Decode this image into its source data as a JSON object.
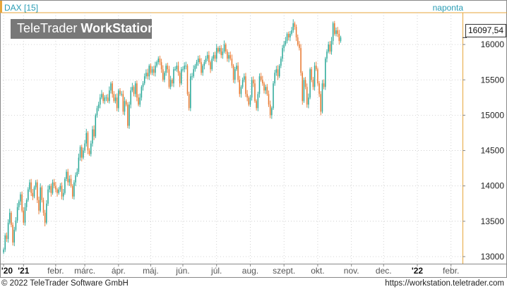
{
  "header": {
    "symbol": "DAX [15]",
    "period": "naponta",
    "logo_regular": "TeleTrader",
    "logo_bold": "WorkStation"
  },
  "last_value_label": "16097,54",
  "footer": {
    "copyright": "© 2022 TeleTrader Software GmbH",
    "url": "https://workstation.teletrader.com"
  },
  "colors": {
    "up": "#2aa898",
    "down": "#e8772e",
    "grid": "#c8c8c8",
    "axis_text": "#2a9db5"
  },
  "chart_data": {
    "type": "candlestick",
    "y_axis_side": "right",
    "ylim": [
      12900,
      16450
    ],
    "yticks": [
      13000,
      13500,
      14000,
      14500,
      15000,
      15500,
      16000
    ],
    "ytick_labels": [
      "13000",
      "13500",
      "14000",
      "14500",
      "15000",
      "15500",
      "16000"
    ],
    "x_tick_labels": [
      "'20",
      "'21",
      "febr.",
      "márc.",
      "ápr.",
      "máj.",
      "jún.",
      "júl.",
      "aug.",
      "szept.",
      "okt.",
      "nov.",
      "dec.",
      "'22",
      "febr."
    ],
    "x_tick_index": [
      0,
      13,
      34,
      53,
      75,
      96,
      117,
      139,
      161,
      183,
      205,
      227,
      248,
      270,
      292
    ],
    "n_slots": 300,
    "first_index": 0,
    "closes": [
      13100,
      13300,
      13250,
      13480,
      13620,
      13450,
      13200,
      13380,
      13510,
      13700,
      13780,
      13880,
      13650,
      13480,
      13700,
      13800,
      13950,
      14050,
      13900,
      13850,
      13980,
      14050,
      13800,
      13650,
      13980,
      13800,
      13620,
      13480,
      13750,
      13950,
      14000,
      13900,
      14050,
      14000,
      13950,
      13900,
      13950,
      14000,
      13850,
      13900,
      14100,
      14200,
      14050,
      14100,
      14000,
      13850,
      14050,
      14150,
      14200,
      14400,
      14550,
      14400,
      14500,
      14600,
      14750,
      14500,
      14450,
      14600,
      14800,
      14700,
      15000,
      15100,
      15150,
      15250,
      15300,
      15200,
      15250,
      15250,
      15200,
      15350,
      15450,
      15300,
      15200,
      15250,
      15100,
      15350,
      15300,
      15300,
      15050,
      15200,
      15150,
      14850,
      15150,
      15350,
      15400,
      15300,
      15450,
      15250,
      15150,
      15250,
      15400,
      15450,
      15550,
      15600,
      15550,
      15700,
      15600,
      15650,
      15600,
      15700,
      15750,
      15800,
      15750,
      15650,
      15500,
      15600,
      15700,
      15650,
      15400,
      15500,
      15450,
      15650,
      15650,
      15700,
      15600,
      15450,
      15650,
      15650,
      15700,
      15700,
      15300,
      15100,
      15550,
      15550,
      15650,
      15700,
      15750,
      15800,
      15750,
      15600,
      15700,
      15750,
      15800,
      15850,
      15750,
      15650,
      15800,
      15850,
      15800,
      15950,
      15900,
      15950,
      15850,
      15900,
      16000,
      15900,
      15800,
      15850,
      15800,
      15700,
      15500,
      15650,
      15700,
      15500,
      15300,
      15400,
      15500,
      15550,
      15300,
      15250,
      15150,
      15250,
      15500,
      15450,
      15200,
      15100,
      15300,
      15550,
      15500,
      15450,
      15350,
      15400,
      15300,
      15150,
      15000,
      15100,
      15450,
      15600,
      15650,
      15550,
      15700,
      15800,
      15950,
      16000,
      16050,
      16150,
      16100,
      16150,
      16200,
      16300,
      16250,
      16100,
      16000,
      15950,
      15600,
      15200,
      15500,
      15400,
      15150,
      15250,
      15650,
      15500,
      15400,
      15700,
      15650,
      15450,
      15300,
      15050,
      15450,
      15400,
      15800,
      15900,
      16000,
      15900,
      16050,
      16300,
      16150,
      16200,
      16150,
      16050,
      16100
    ],
    "last_value": 16097.54
  }
}
